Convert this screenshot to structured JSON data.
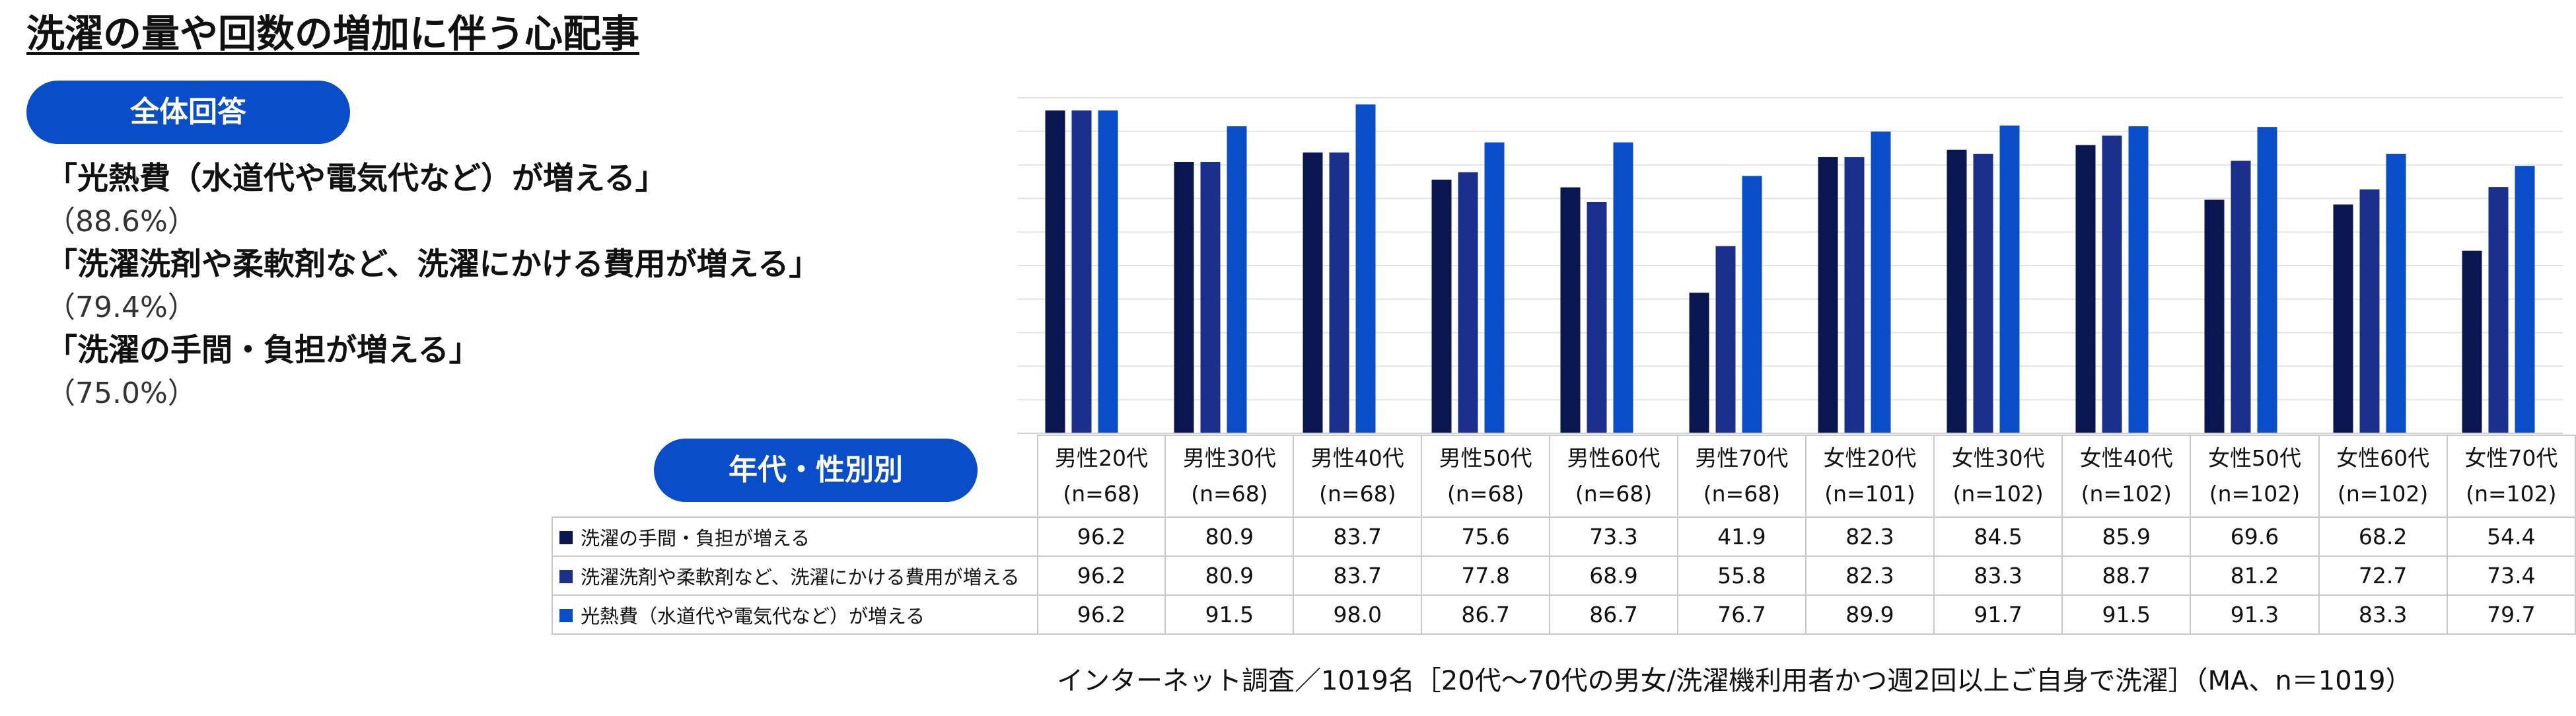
{
  "title": "洗濯の量や回数の増加に伴う心配事",
  "overall_label": "全体回答",
  "age_gender_label": "年代・性別別",
  "summary": [
    {
      "label": "「光熱費（水道代や電気代など）が増える」",
      "pct": "（88.6%）"
    },
    {
      "label": "「洗濯洗剤や柔軟剤など、洗濯にかける費用が増える」",
      "pct": "（79.4%）"
    },
    {
      "label": "「洗濯の手間・負担が増える」",
      "pct": "（75.0%）"
    }
  ],
  "footnote": "インターネット調査／1019名［20代～70代の男女/洗濯機利用者かつ週2回以上ご自身で洗濯］（MA、n＝1019）",
  "chart_data": {
    "type": "bar",
    "ylim": [
      0,
      100
    ],
    "grid": true,
    "categories": [
      "男性20代",
      "男性30代",
      "男性40代",
      "男性50代",
      "男性60代",
      "男性70代",
      "女性20代",
      "女性30代",
      "女性40代",
      "女性50代",
      "女性60代",
      "女性70代"
    ],
    "sample_sizes": [
      "(n=68)",
      "(n=68)",
      "(n=68)",
      "(n=68)",
      "(n=68)",
      "(n=68)",
      "(n=101)",
      "(n=102)",
      "(n=102)",
      "(n=102)",
      "(n=102)",
      "(n=102)"
    ],
    "series": [
      {
        "name": "洗濯の手間・負担が増える",
        "color": "#0a1650",
        "values": [
          96.2,
          80.9,
          83.7,
          75.6,
          73.3,
          41.9,
          82.3,
          84.5,
          85.9,
          69.6,
          68.2,
          54.4
        ]
      },
      {
        "name": "洗濯洗剤や柔軟剤など、洗濯にかける費用が増える",
        "color": "#1b2f8c",
        "values": [
          96.2,
          80.9,
          83.7,
          77.8,
          68.9,
          55.8,
          82.3,
          83.3,
          88.7,
          81.2,
          72.7,
          73.4
        ]
      },
      {
        "name": "光熱費（水道代や電気代など）が増える",
        "color": "#0a4dc9",
        "values": [
          96.2,
          91.5,
          98.0,
          86.7,
          86.7,
          76.7,
          89.9,
          91.7,
          91.5,
          91.3,
          83.3,
          79.7
        ]
      }
    ]
  }
}
